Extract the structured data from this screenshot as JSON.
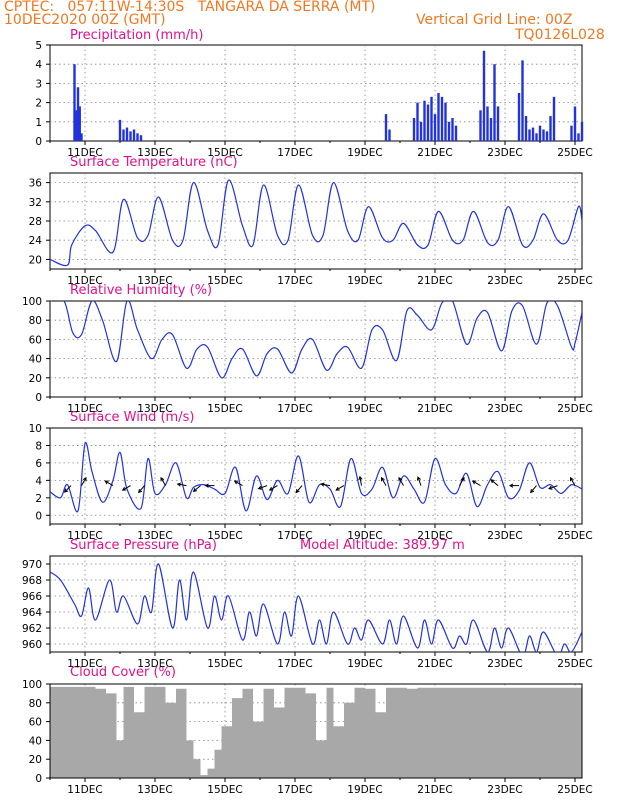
{
  "header": {
    "line1": "CPTEC:   057:11W-14:30S   TANGARA DA SERRA (MT)",
    "line2_left": "10DEC2020 00Z (GMT)",
    "line2_right": "Vertical Grid Line: 00Z",
    "line3_right": "TQ0126L028"
  },
  "colors": {
    "header": "#f07820",
    "titles": "#e0128c",
    "line": "#2233dd",
    "cloud": "#a8a8a8"
  },
  "chart_data": [
    {
      "type": "bar",
      "title": "Precipitation (mm/h)",
      "xlabel": "",
      "ylabel": "",
      "x_ticks": [
        "11DEC",
        "13DEC",
        "15DEC",
        "17DEC",
        "19DEC",
        "21DEC",
        "23DEC",
        "25DEC"
      ],
      "ylim": [
        0,
        5
      ],
      "y_ticks": [
        "0",
        "1",
        "2",
        "3",
        "4",
        "5"
      ],
      "grid": true,
      "x": [
        0.7,
        0.75,
        0.8,
        0.85,
        0.9,
        2.0,
        2.1,
        2.2,
        2.3,
        2.4,
        2.5,
        2.6,
        9.6,
        9.7,
        10.4,
        10.5,
        10.6,
        10.7,
        10.8,
        10.9,
        11.0,
        11.1,
        11.2,
        11.3,
        11.4,
        11.5,
        11.6,
        12.3,
        12.4,
        12.5,
        12.6,
        12.7,
        12.8,
        13.4,
        13.5,
        13.6,
        13.7,
        13.8,
        13.9,
        14.0,
        14.1,
        14.2,
        14.3,
        14.4,
        14.9,
        15.0,
        15.1,
        15.2
      ],
      "values": [
        4.0,
        1.6,
        2.8,
        1.8,
        0.4,
        1.1,
        0.6,
        0.7,
        0.5,
        0.6,
        0.4,
        0.3,
        1.4,
        0.6,
        1.2,
        2.0,
        1.0,
        2.1,
        1.9,
        2.3,
        1.4,
        2.5,
        2.3,
        2.0,
        1.0,
        1.2,
        0.8,
        1.6,
        4.7,
        1.8,
        1.2,
        4.0,
        1.8,
        2.5,
        4.2,
        1.3,
        0.6,
        0.7,
        0.4,
        0.8,
        0.6,
        0.5,
        1.3,
        2.3,
        0.8,
        1.8,
        0.4,
        1.0
      ]
    },
    {
      "type": "line",
      "title": "Surface Temperature (nC)",
      "x_ticks": [
        "11DEC",
        "13DEC",
        "15DEC",
        "17DEC",
        "19DEC",
        "21DEC",
        "23DEC",
        "25DEC"
      ],
      "ylim": [
        18,
        38
      ],
      "y_ticks": [
        "20",
        "24",
        "28",
        "32",
        "36"
      ],
      "grid": true,
      "series": [
        {
          "x": [
            0,
            0.5,
            0.62,
            1.0,
            1.3,
            1.8,
            2.1,
            2.5,
            2.8,
            3.1,
            3.5,
            3.8,
            4.1,
            4.5,
            4.8,
            5.1,
            5.5,
            5.8,
            6.1,
            6.5,
            6.8,
            7.1,
            7.5,
            7.8,
            8.1,
            8.5,
            8.8,
            9.1,
            9.5,
            9.8,
            10.1,
            10.5,
            10.8,
            11.1,
            11.5,
            11.8,
            12.1,
            12.5,
            12.8,
            13.1,
            13.5,
            13.8,
            14.1,
            14.5,
            14.8,
            15.1,
            15.2
          ],
          "y": [
            20,
            18.8,
            23,
            27,
            26,
            21.5,
            32.5,
            24.5,
            25,
            33,
            24,
            24,
            36,
            26,
            23,
            36.5,
            27,
            23,
            35.5,
            25,
            24,
            35.5,
            25,
            25,
            36,
            26,
            24,
            31,
            24.5,
            24,
            27.5,
            23,
            23,
            30,
            24,
            24,
            30,
            23.5,
            24,
            31,
            23,
            24,
            29.5,
            24,
            24,
            31,
            28
          ]
        }
      ]
    },
    {
      "type": "line",
      "title": "Relative Humidity (%)",
      "x_ticks": [
        "11DEC",
        "13DEC",
        "15DEC",
        "17DEC",
        "19DEC",
        "21DEC",
        "23DEC",
        "25DEC"
      ],
      "ylim": [
        0,
        100
      ],
      "y_ticks": [
        "0",
        "20",
        "40",
        "60",
        "80",
        "100"
      ],
      "grid": true,
      "series": [
        {
          "x": [
            0,
            0.4,
            0.65,
            0.9,
            1.2,
            1.5,
            1.9,
            2.2,
            2.5,
            2.9,
            3.2,
            3.5,
            3.9,
            4.2,
            4.5,
            4.9,
            5.2,
            5.5,
            5.9,
            6.2,
            6.5,
            6.9,
            7.2,
            7.5,
            7.9,
            8.2,
            8.5,
            8.9,
            9.2,
            9.5,
            9.9,
            10.2,
            10.5,
            10.9,
            11.2,
            11.5,
            11.9,
            12.2,
            12.5,
            12.9,
            13.2,
            13.5,
            13.9,
            14.2,
            14.5,
            14.9,
            15.0,
            15.2
          ],
          "y": [
            100,
            100,
            67,
            65,
            100,
            80,
            37,
            100,
            70,
            40,
            60,
            65,
            30,
            50,
            52,
            20,
            40,
            50,
            22,
            45,
            50,
            25,
            50,
            60,
            28,
            45,
            52,
            30,
            70,
            70,
            38,
            90,
            85,
            70,
            98,
            100,
            55,
            82,
            88,
            48,
            90,
            95,
            55,
            98,
            95,
            52,
            56,
            88
          ]
        }
      ]
    },
    {
      "type": "line",
      "title": "Surface Wind (m/s)",
      "x_ticks": [
        "11DEC",
        "13DEC",
        "15DEC",
        "17DEC",
        "19DEC",
        "21DEC",
        "23DEC",
        "25DEC"
      ],
      "ylim": [
        -1,
        10
      ],
      "y_ticks": [
        "0",
        "2",
        "4",
        "6",
        "8",
        "10"
      ],
      "grid": true,
      "series": [
        {
          "x": [
            0,
            0.3,
            0.5,
            0.8,
            1.0,
            1.2,
            1.5,
            1.8,
            2.0,
            2.2,
            2.6,
            2.8,
            3.0,
            3.3,
            3.6,
            3.9,
            4.1,
            4.4,
            4.7,
            5.0,
            5.3,
            5.6,
            5.9,
            6.2,
            6.5,
            6.8,
            7.1,
            7.4,
            7.7,
            8.0,
            8.3,
            8.6,
            8.9,
            9.2,
            9.5,
            9.8,
            10.1,
            10.4,
            10.7,
            11.0,
            11.3,
            11.6,
            11.9,
            12.2,
            12.5,
            12.8,
            13.1,
            13.4,
            13.7,
            14.0,
            14.3,
            14.6,
            14.9,
            15.2
          ],
          "y": [
            2.7,
            2,
            3.5,
            0.5,
            8.2,
            5,
            1.5,
            4,
            7.2,
            3,
            0.8,
            6.5,
            2.5,
            3.5,
            6,
            2,
            3.2,
            3.5,
            3,
            2.5,
            5.5,
            0.5,
            4.5,
            1.8,
            4,
            2.5,
            6.8,
            1.5,
            3.5,
            3,
            1,
            6.5,
            2.5,
            3,
            5.5,
            2,
            4.5,
            3,
            1.5,
            6.5,
            3.5,
            2.5,
            4.8,
            1,
            3.5,
            5,
            2,
            2.8,
            6,
            3.2,
            3.5,
            2.5,
            3.5,
            3
          ]
        }
      ],
      "arrows": [
        {
          "x": 0.6,
          "angle": 225
        },
        {
          "x": 0.9,
          "angle": 60
        },
        {
          "x": 1.8,
          "angle": 150
        },
        {
          "x": 2.3,
          "angle": 210
        },
        {
          "x": 2.7,
          "angle": 230
        },
        {
          "x": 3.3,
          "angle": 120
        },
        {
          "x": 3.9,
          "angle": 170
        },
        {
          "x": 4.3,
          "angle": 220
        },
        {
          "x": 4.7,
          "angle": 180
        },
        {
          "x": 5.5,
          "angle": 150
        },
        {
          "x": 6.2,
          "angle": 200
        },
        {
          "x": 6.5,
          "angle": 210
        },
        {
          "x": 7.2,
          "angle": 230
        },
        {
          "x": 8.0,
          "angle": 170
        },
        {
          "x": 8.4,
          "angle": 210
        },
        {
          "x": 8.9,
          "angle": 100
        },
        {
          "x": 9.6,
          "angle": 120
        },
        {
          "x": 10.1,
          "angle": 120
        },
        {
          "x": 10.6,
          "angle": 110
        },
        {
          "x": 11.7,
          "angle": 60
        },
        {
          "x": 12.3,
          "angle": 150
        },
        {
          "x": 12.8,
          "angle": 140
        },
        {
          "x": 13.4,
          "angle": 180
        },
        {
          "x": 13.9,
          "angle": 230
        },
        {
          "x": 14.5,
          "angle": 200
        },
        {
          "x": 15.0,
          "angle": 120
        }
      ]
    },
    {
      "type": "line",
      "title": "Surface Pressure (hPa)",
      "annotation": "Model Altitude: 389.97 m",
      "x_ticks": [
        "11DEC",
        "13DEC",
        "15DEC",
        "17DEC",
        "19DEC",
        "21DEC",
        "23DEC",
        "25DEC"
      ],
      "ylim": [
        959,
        971
      ],
      "y_ticks": [
        "960",
        "962",
        "964",
        "966",
        "968",
        "970"
      ],
      "grid": true,
      "series": [
        {
          "x": [
            0,
            0.3,
            0.7,
            0.9,
            1.1,
            1.3,
            1.7,
            1.9,
            2.1,
            2.5,
            2.7,
            2.9,
            3.1,
            3.5,
            3.7,
            3.9,
            4.1,
            4.5,
            4.7,
            4.9,
            5.1,
            5.5,
            5.7,
            5.9,
            6.1,
            6.5,
            6.7,
            6.9,
            7.1,
            7.5,
            7.7,
            7.9,
            8.1,
            8.5,
            8.7,
            8.9,
            9.1,
            9.5,
            9.7,
            9.9,
            10.1,
            10.5,
            10.7,
            10.9,
            11.1,
            11.5,
            11.7,
            11.9,
            12.1,
            12.5,
            12.7,
            12.9,
            13.1,
            13.5,
            13.7,
            13.9,
            14.1,
            14.5,
            14.7,
            14.9,
            15.2
          ],
          "y": [
            969,
            968,
            965,
            963.5,
            967,
            963,
            968,
            964,
            966,
            962.5,
            966,
            964,
            970,
            962,
            968,
            963,
            969,
            962,
            966,
            963,
            966,
            960.5,
            964,
            961,
            965,
            960,
            964,
            961,
            966,
            960,
            963,
            960,
            964,
            960,
            962,
            960.5,
            963,
            960,
            963,
            960,
            963.5,
            959.5,
            963,
            960,
            963,
            959.5,
            961,
            960,
            963,
            959,
            962,
            959.5,
            962,
            958.5,
            961,
            959,
            961.5,
            958.5,
            960,
            959,
            961.5
          ]
        }
      ]
    },
    {
      "type": "bar",
      "title": "Cloud Cover (%)",
      "x_ticks": [
        "11DEC",
        "13DEC",
        "15DEC",
        "17DEC",
        "19DEC",
        "21DEC",
        "23DEC",
        "25DEC"
      ],
      "ylim": [
        0,
        100
      ],
      "y_ticks": [
        "0",
        "20",
        "40",
        "60",
        "80",
        "100"
      ],
      "grid": true,
      "x": [
        0,
        0.5,
        1.0,
        1.3,
        1.6,
        1.9,
        2.1,
        2.4,
        2.7,
        3.0,
        3.3,
        3.6,
        3.9,
        4.1,
        4.3,
        4.5,
        4.7,
        4.9,
        5.2,
        5.5,
        5.8,
        6.1,
        6.4,
        6.7,
        7.0,
        7.3,
        7.6,
        7.9,
        8.1,
        8.4,
        8.7,
        9.0,
        9.3,
        9.6,
        9.9,
        10.2,
        10.5,
        10.8,
        11.1,
        11.4,
        11.7,
        12.0,
        12.3,
        12.6,
        12.9,
        13.2,
        13.5,
        13.8,
        14.1,
        14.4,
        14.7,
        15.0,
        15.2
      ],
      "values": [
        97,
        97,
        97,
        95,
        90,
        40,
        97,
        70,
        97,
        97,
        80,
        95,
        40,
        20,
        3,
        10,
        30,
        55,
        85,
        95,
        60,
        95,
        75,
        96,
        96,
        90,
        40,
        96,
        55,
        80,
        96,
        95,
        70,
        96,
        96,
        95,
        96,
        96,
        96,
        96,
        96,
        96,
        96,
        96,
        96,
        96,
        96,
        96,
        96,
        96,
        96,
        96,
        96
      ]
    }
  ]
}
